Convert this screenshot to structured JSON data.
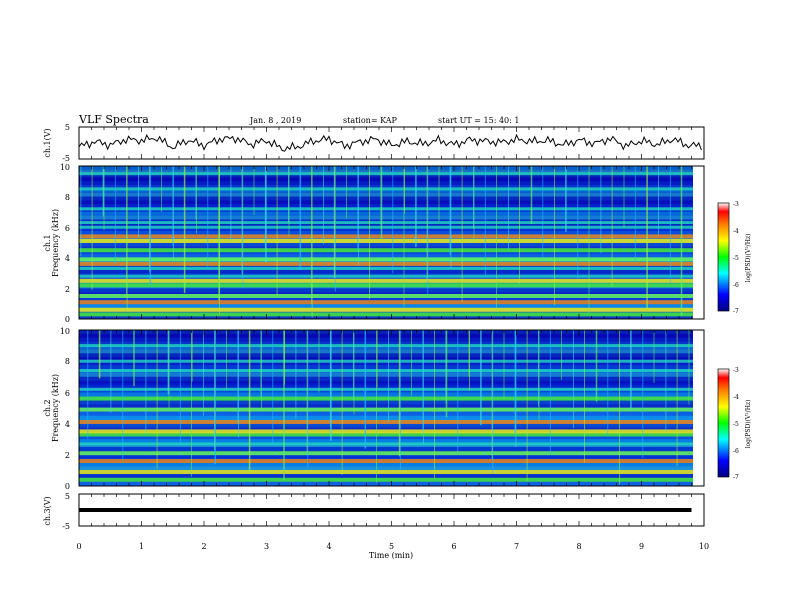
{
  "header": {
    "title": "VLF Spectra",
    "date": "Jan. 8 , 2019",
    "station": "station= KAP",
    "start": "start UT =  15: 40: 1"
  },
  "chart_data": [
    {
      "type": "line",
      "ylabel": "ch.1(V)",
      "ylim": [
        -5,
        5
      ],
      "yticks": [
        "5",
        "-5"
      ],
      "x": [
        0.0,
        0.25,
        0.5,
        0.75,
        1.0,
        1.25,
        1.5,
        1.75,
        2.0,
        2.25,
        2.5,
        2.75,
        3.0,
        3.25,
        3.5,
        3.75,
        4.0,
        4.25,
        4.5,
        4.75,
        5.0,
        5.25,
        5.5,
        5.75,
        6.0,
        6.25,
        6.5,
        6.75,
        7.0,
        7.25,
        7.5,
        7.75,
        8.0,
        8.25,
        8.5,
        8.75,
        9.0,
        9.25,
        9.5,
        9.75
      ],
      "values": [
        -1.2,
        0.4,
        -0.6,
        1.1,
        0.8,
        1.6,
        -1.4,
        0.9,
        -0.8,
        1.2,
        1.5,
        -0.4,
        0.8,
        -1.8,
        -1.2,
        0.6,
        1.3,
        -0.9,
        0.4,
        1.2,
        -0.7,
        0.5,
        -0.3,
        0.9,
        -0.5,
        1.0,
        0.6,
        0.2,
        1.1,
        0.5,
        0.8,
        -0.6,
        0.9,
        -0.2,
        1.4,
        -1.0,
        0.7,
        -0.5,
        1.2,
        -0.8
      ]
    },
    {
      "type": "heatmap",
      "ylabel": "ch.1",
      "ylabel2": "Frequency (kHz)",
      "ylim": [
        0,
        10
      ],
      "yticks": [
        "0",
        "2",
        "4",
        "6",
        "8",
        "10"
      ],
      "colorbar": {
        "label": "log(PSD)(V²/Hz)",
        "range": [
          -7,
          -3
        ],
        "ticks": [
          "-3",
          "-4",
          "-5",
          "-6",
          "-7"
        ]
      },
      "strong_bands_khz": [
        0.3,
        0.6,
        1.1,
        1.5,
        2.2,
        2.5,
        3.6,
        3.9,
        4.5,
        5.1,
        5.4
      ],
      "weak_bands_khz": [
        2.8,
        3.3,
        6.0,
        6.3,
        7.2,
        8.5,
        9.5
      ]
    },
    {
      "type": "heatmap",
      "ylabel": "ch.2",
      "ylabel2": "Frequency (kHz)",
      "ylim": [
        0,
        10
      ],
      "yticks": [
        "0",
        "2",
        "4",
        "6",
        "8",
        "10"
      ],
      "colorbar": {
        "label": "log(PSD)(V²/Hz)",
        "range": [
          -7,
          -3
        ],
        "ticks": [
          "-3",
          "-4",
          "-5",
          "-6",
          "-7"
        ]
      },
      "strong_bands_khz": [
        0.4,
        0.9,
        1.6,
        2.1,
        3.3,
        3.5,
        4.1,
        4.9,
        5.6
      ],
      "weak_bands_khz": [
        2.7,
        6.2,
        7.4,
        8.0,
        9.0
      ]
    },
    {
      "type": "line",
      "ylabel": "ch.3(V)",
      "ylim": [
        -5,
        5
      ],
      "yticks": [
        "5",
        "-5"
      ],
      "x": [
        0,
        9.8
      ],
      "values": [
        0,
        0
      ]
    }
  ],
  "xaxis": {
    "label": "Time (min)",
    "range": [
      0,
      10
    ],
    "ticks": [
      "0",
      "1",
      "2",
      "3",
      "4",
      "5",
      "6",
      "7",
      "8",
      "9",
      "10"
    ]
  }
}
